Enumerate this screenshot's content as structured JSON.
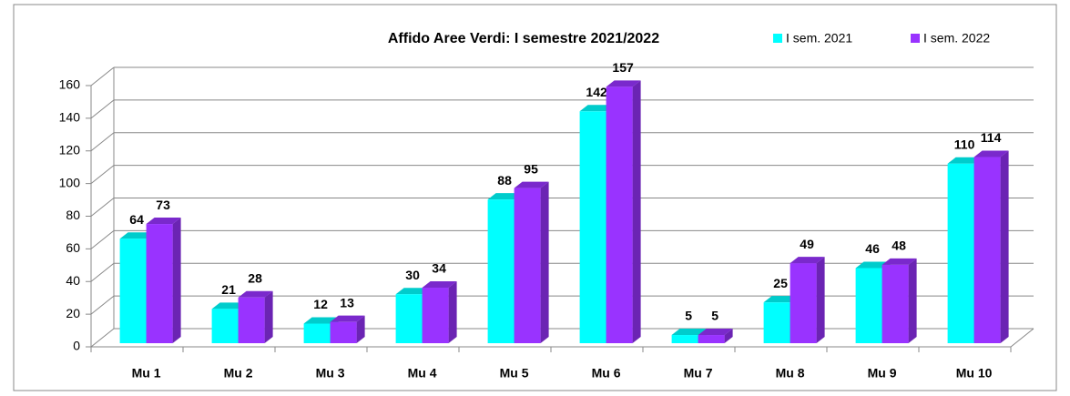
{
  "chart_data": {
    "type": "bar3d",
    "title": "Affido Aree Verdi: I semestre 2021/2022",
    "categories": [
      "Mu 1",
      "Mu 2",
      "Mu 3",
      "Mu 4",
      "Mu 5",
      "Mu 6",
      "Mu 7",
      "Mu 8",
      "Mu 9",
      "Mu 10"
    ],
    "series": [
      {
        "name": "I sem. 2021",
        "color": "#00ffff",
        "values": [
          64,
          21,
          12,
          30,
          88,
          142,
          5,
          25,
          46,
          110
        ]
      },
      {
        "name": "I sem. 2022",
        "color": "#9933ff",
        "values": [
          73,
          28,
          13,
          34,
          95,
          157,
          5,
          49,
          48,
          114
        ]
      }
    ],
    "ylim": [
      0,
      160
    ],
    "yticks": [
      0,
      20,
      40,
      60,
      80,
      100,
      120,
      140,
      160
    ],
    "grid": true,
    "legend": "top-right"
  }
}
